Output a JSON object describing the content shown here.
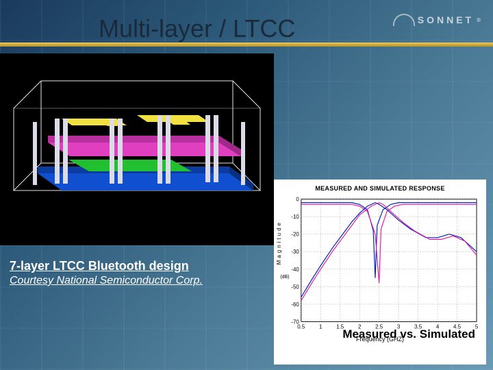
{
  "title": "Multi-layer / LTCC",
  "logo_text": "SONNET",
  "logo_reg": "®",
  "caption_line1": "7-layer LTCC Bluetooth design",
  "caption_line2": "Courtesy National Semiconductor Corp.",
  "chart": {
    "title": "MEASURED AND SIMULATED RESPONSE",
    "xlabel": "Frequency (GHZ)",
    "ylabel": "Magnitude",
    "ylabel_units": "(dB)",
    "xlim": [
      0.5,
      5.0
    ],
    "ylim": [
      -70,
      0
    ],
    "xtick_step": 0.5,
    "ytick_step": 10,
    "line_colors": {
      "measured": "#0020c0",
      "simulated": "#e020a0"
    },
    "grid_color": "#808080",
    "axis_color": "#000000",
    "background_color": "#ffffff",
    "line_width": 1.2,
    "series": {
      "measured_upper": [
        [
          0.5,
          -2
        ],
        [
          1.0,
          -2
        ],
        [
          1.5,
          -2
        ],
        [
          1.8,
          -2
        ],
        [
          2.0,
          -3
        ],
        [
          2.2,
          -6
        ],
        [
          2.35,
          -18
        ],
        [
          2.4,
          -45
        ],
        [
          2.45,
          -15
        ],
        [
          2.6,
          -6
        ],
        [
          2.8,
          -3
        ],
        [
          3.0,
          -2
        ],
        [
          3.5,
          -2
        ],
        [
          4.0,
          -2
        ],
        [
          4.5,
          -2
        ],
        [
          5.0,
          -2
        ]
      ],
      "simulated_upper": [
        [
          0.5,
          -3
        ],
        [
          1.0,
          -3
        ],
        [
          1.5,
          -3
        ],
        [
          1.8,
          -3
        ],
        [
          2.0,
          -4
        ],
        [
          2.2,
          -7
        ],
        [
          2.4,
          -20
        ],
        [
          2.5,
          -48
        ],
        [
          2.55,
          -17
        ],
        [
          2.7,
          -7
        ],
        [
          2.9,
          -4
        ],
        [
          3.1,
          -3
        ],
        [
          3.5,
          -3
        ],
        [
          4.0,
          -3
        ],
        [
          4.5,
          -3
        ],
        [
          5.0,
          -3
        ]
      ],
      "measured_lower": [
        [
          0.5,
          -56
        ],
        [
          0.8,
          -45
        ],
        [
          1.0,
          -38
        ],
        [
          1.3,
          -28
        ],
        [
          1.5,
          -22
        ],
        [
          1.8,
          -13
        ],
        [
          2.0,
          -8
        ],
        [
          2.2,
          -4
        ],
        [
          2.4,
          -2
        ],
        [
          2.5,
          -3
        ],
        [
          2.7,
          -6
        ],
        [
          3.0,
          -12
        ],
        [
          3.3,
          -17
        ],
        [
          3.7,
          -22
        ],
        [
          4.0,
          -22
        ],
        [
          4.3,
          -20
        ],
        [
          4.6,
          -22
        ],
        [
          5.0,
          -30
        ]
      ],
      "simulated_lower": [
        [
          0.5,
          -58
        ],
        [
          0.8,
          -47
        ],
        [
          1.0,
          -40
        ],
        [
          1.3,
          -30
        ],
        [
          1.5,
          -24
        ],
        [
          1.8,
          -15
        ],
        [
          2.0,
          -9
        ],
        [
          2.3,
          -4
        ],
        [
          2.5,
          -2
        ],
        [
          2.6,
          -3
        ],
        [
          2.8,
          -7
        ],
        [
          3.1,
          -13
        ],
        [
          3.4,
          -18
        ],
        [
          3.8,
          -23
        ],
        [
          4.1,
          -23
        ],
        [
          4.4,
          -21
        ],
        [
          4.7,
          -24
        ],
        [
          5.0,
          -32
        ]
      ]
    },
    "caption": "Measured vs. Simulated"
  },
  "render3d": {
    "background": "#000000",
    "box_edge_color": "#ffffff",
    "layers": [
      {
        "color": "#1050d0",
        "z": 0
      },
      {
        "color": "#20c030",
        "z": 1
      },
      {
        "color": "#e040c0",
        "z": 2
      },
      {
        "color": "#f0e040",
        "z": 3
      }
    ],
    "via_color": "#dcdce8"
  }
}
